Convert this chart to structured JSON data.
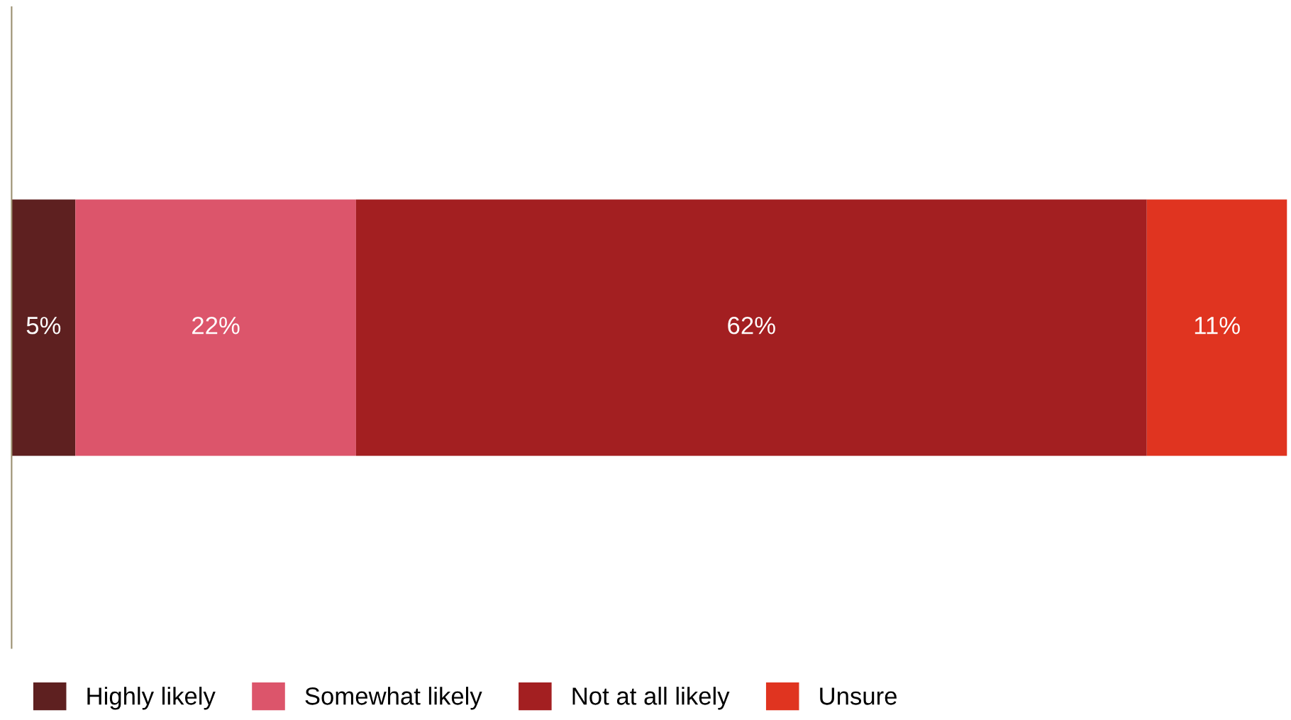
{
  "chart_data": {
    "type": "bar",
    "orientation": "horizontal",
    "stacked": true,
    "categories": [
      null
    ],
    "xlim": [
      0,
      100
    ],
    "tick_labels": false,
    "grid": false,
    "legend": "bottom left",
    "series": [
      {
        "name": "Highly likely",
        "color": "#5e2020",
        "values": [
          5
        ],
        "value_labels": [
          "5%"
        ]
      },
      {
        "name": "Somewhat likely",
        "color": "#dc556b",
        "values": [
          22
        ],
        "value_labels": [
          "22%"
        ]
      },
      {
        "name": "Not at all likely",
        "color": "#a31f21",
        "values": [
          62
        ],
        "value_labels": [
          "62%"
        ]
      },
      {
        "name": "Unsure",
        "color": "#e03420",
        "values": [
          11
        ],
        "value_labels": [
          "11%"
        ]
      }
    ]
  }
}
